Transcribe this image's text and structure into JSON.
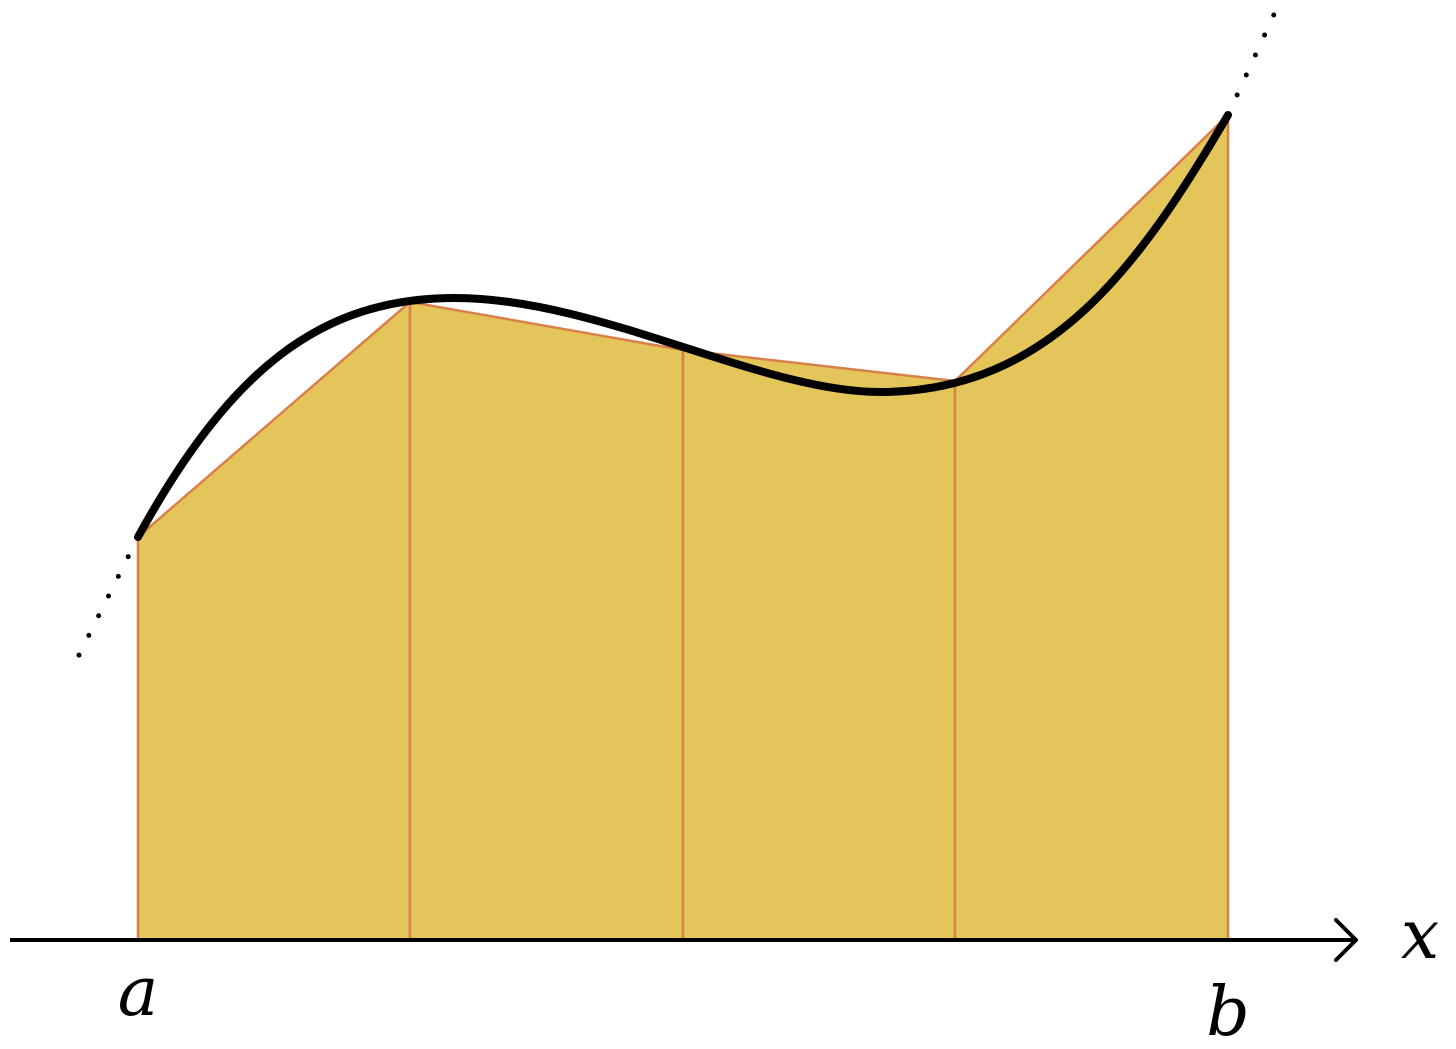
{
  "diagram": {
    "labels": {
      "left_endpoint": "a",
      "right_endpoint": "b",
      "axis": "x"
    },
    "trapezoid_count": 4,
    "colors": {
      "fill": "#E3C55A",
      "edge": "#D9804A",
      "curve": "#000000",
      "axis": "#000000"
    }
  }
}
